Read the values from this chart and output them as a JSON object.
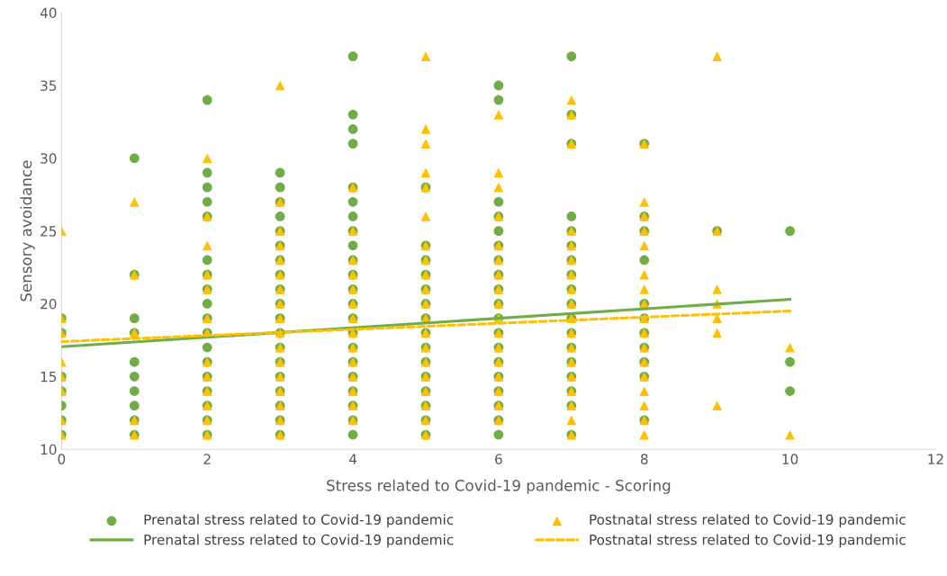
{
  "chart_data": {
    "type": "scatter",
    "xlabel": "Stress related to Covid-19 pandemic - Scoring",
    "ylabel": "Sensory avoidance",
    "xlim": [
      0,
      12
    ],
    "xticks": [
      0,
      2,
      4,
      6,
      8,
      10,
      12
    ],
    "ylim": [
      10,
      40
    ],
    "yticks": [
      10,
      15,
      20,
      25,
      30,
      35,
      40
    ],
    "grid": false,
    "legend": "bottom",
    "series": [
      {
        "name": "Prenatal stress related to Covid-19 pandemic",
        "marker": "circle",
        "color": "#70ad47",
        "x": [
          0,
          0,
          0,
          0,
          0,
          0,
          0,
          1,
          1,
          1,
          1,
          1,
          1,
          1,
          1,
          1,
          1,
          2,
          2,
          2,
          2,
          2,
          2,
          2,
          2,
          2,
          2,
          2,
          2,
          2,
          2,
          2,
          2,
          2,
          2,
          3,
          3,
          3,
          3,
          3,
          3,
          3,
          3,
          3,
          3,
          3,
          3,
          3,
          3,
          3,
          3,
          3,
          3,
          3,
          4,
          4,
          4,
          4,
          4,
          4,
          4,
          4,
          4,
          4,
          4,
          4,
          4,
          4,
          4,
          4,
          4,
          4,
          4,
          4,
          4,
          4,
          5,
          5,
          5,
          5,
          5,
          5,
          5,
          5,
          5,
          5,
          5,
          5,
          5,
          5,
          5,
          6,
          6,
          6,
          6,
          6,
          6,
          6,
          6,
          6,
          6,
          6,
          6,
          6,
          6,
          6,
          6,
          6,
          6,
          6,
          7,
          7,
          7,
          7,
          7,
          7,
          7,
          7,
          7,
          7,
          7,
          7,
          7,
          7,
          7,
          7,
          7,
          7,
          8,
          8,
          8,
          8,
          8,
          8,
          8,
          8,
          8,
          8,
          8,
          9,
          10,
          10,
          10
        ],
        "values": [
          19,
          18,
          15,
          14,
          13,
          12,
          11,
          30,
          22,
          19,
          18,
          16,
          15,
          14,
          13,
          12,
          11,
          34,
          29,
          28,
          27,
          26,
          23,
          22,
          21,
          20,
          19,
          18,
          17,
          16,
          15,
          14,
          13,
          12,
          11,
          29,
          28,
          27,
          26,
          25,
          24,
          23,
          22,
          21,
          20,
          19,
          18,
          17,
          16,
          15,
          14,
          13,
          12,
          11,
          37,
          33,
          32,
          31,
          28,
          27,
          26,
          25,
          24,
          23,
          22,
          21,
          20,
          19,
          18,
          17,
          16,
          15,
          14,
          13,
          12,
          11,
          28,
          24,
          23,
          22,
          21,
          20,
          19,
          18,
          17,
          16,
          15,
          14,
          13,
          12,
          11,
          35,
          34,
          27,
          26,
          25,
          24,
          23,
          22,
          21,
          20,
          19,
          18,
          17,
          16,
          15,
          14,
          13,
          12,
          11,
          37,
          33,
          31,
          26,
          25,
          24,
          23,
          22,
          21,
          20,
          19,
          18,
          17,
          16,
          15,
          14,
          13,
          11,
          31,
          26,
          25,
          23,
          20,
          19,
          18,
          17,
          16,
          15,
          12,
          25,
          25,
          16,
          14
        ]
      },
      {
        "name": "Postnatal stress related to Covid-19 pandemic",
        "marker": "triangle",
        "color": "#ffc000",
        "x": [
          0,
          0,
          0,
          0,
          0,
          0,
          0,
          0,
          1,
          1,
          1,
          1,
          1,
          2,
          2,
          2,
          2,
          2,
          2,
          2,
          2,
          2,
          2,
          2,
          2,
          2,
          3,
          3,
          3,
          3,
          3,
          3,
          3,
          3,
          3,
          3,
          3,
          3,
          3,
          3,
          3,
          3,
          3,
          4,
          4,
          4,
          4,
          4,
          4,
          4,
          4,
          4,
          4,
          4,
          4,
          4,
          4,
          5,
          5,
          5,
          5,
          5,
          5,
          5,
          5,
          5,
          5,
          5,
          5,
          5,
          5,
          5,
          5,
          5,
          5,
          5,
          5,
          6,
          6,
          6,
          6,
          6,
          6,
          6,
          6,
          6,
          6,
          6,
          6,
          6,
          6,
          6,
          6,
          6,
          7,
          7,
          7,
          7,
          7,
          7,
          7,
          7,
          7,
          7,
          7,
          7,
          7,
          7,
          7,
          7,
          7,
          7,
          8,
          8,
          8,
          8,
          8,
          8,
          8,
          8,
          8,
          8,
          8,
          8,
          8,
          8,
          8,
          8,
          8,
          9,
          9,
          9,
          9,
          9,
          9,
          9,
          10,
          10
        ],
        "values": [
          25,
          19,
          18,
          16,
          15,
          14,
          12,
          11,
          27,
          22,
          18,
          12,
          11,
          30,
          26,
          24,
          22,
          21,
          19,
          18,
          16,
          15,
          14,
          13,
          12,
          11,
          35,
          27,
          25,
          24,
          23,
          22,
          21,
          20,
          19,
          18,
          17,
          16,
          15,
          14,
          13,
          12,
          11,
          28,
          25,
          23,
          22,
          21,
          20,
          19,
          18,
          17,
          16,
          15,
          14,
          13,
          12,
          37,
          32,
          31,
          29,
          28,
          26,
          24,
          23,
          22,
          21,
          20,
          19,
          18,
          17,
          16,
          15,
          14,
          13,
          12,
          11,
          33,
          29,
          28,
          26,
          24,
          23,
          22,
          21,
          20,
          19,
          18,
          17,
          16,
          15,
          14,
          13,
          12,
          34,
          33,
          31,
          25,
          24,
          23,
          22,
          21,
          20,
          19,
          18,
          17,
          16,
          15,
          14,
          13,
          12,
          11,
          31,
          27,
          26,
          25,
          24,
          22,
          21,
          20,
          19,
          18,
          17,
          16,
          15,
          14,
          13,
          12,
          11,
          37,
          25,
          21,
          20,
          19,
          18,
          13,
          17,
          11
        ]
      },
      {
        "name": "Prenatal stress related to Covid-19 pandemic",
        "type": "line",
        "marker": "none",
        "line_style": "solid",
        "color": "#70ad47",
        "x": [
          0,
          10
        ],
        "values": [
          17.05,
          20.3
        ]
      },
      {
        "name": "Postnatal stress related to Covid-19 pandemic",
        "type": "line",
        "marker": "none",
        "line_style": "dashed",
        "color": "#ffc000",
        "x": [
          0,
          10
        ],
        "values": [
          17.4,
          19.5
        ]
      }
    ]
  }
}
